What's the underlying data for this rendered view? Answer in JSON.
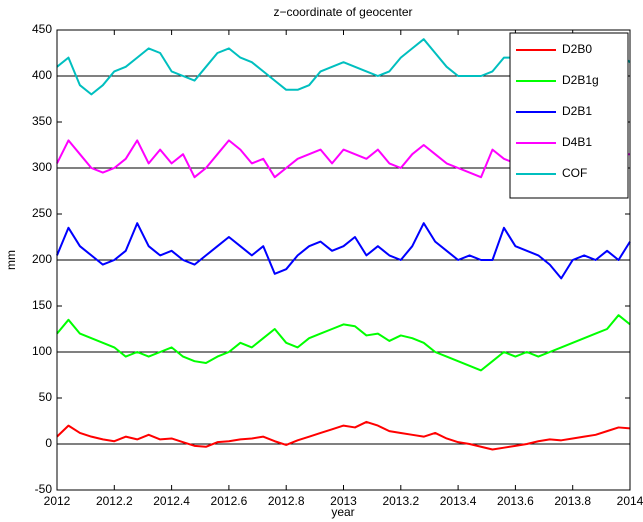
{
  "chart_data": {
    "type": "line",
    "title": "z−coordinate of geocenter",
    "xlabel": "year",
    "ylabel": "mm",
    "x": [
      2012,
      2012.04,
      2012.08,
      2012.12,
      2012.16,
      2012.2,
      2012.24,
      2012.28,
      2012.32,
      2012.36,
      2012.4,
      2012.44,
      2012.48,
      2012.52,
      2012.56,
      2012.6,
      2012.64,
      2012.68,
      2012.72,
      2012.76,
      2012.8,
      2012.84,
      2012.88,
      2012.92,
      2012.96,
      2013,
      2013.04,
      2013.08,
      2013.12,
      2013.16,
      2013.2,
      2013.24,
      2013.28,
      2013.32,
      2013.36,
      2013.4,
      2013.44,
      2013.48,
      2013.52,
      2013.56,
      2013.6,
      2013.64,
      2013.68,
      2013.72,
      2013.76,
      2013.8,
      2013.84,
      2013.88,
      2013.92,
      2013.96,
      2014
    ],
    "series": [
      {
        "name": "D2B0",
        "color": "#ff0000",
        "values": [
          8,
          20,
          12,
          8,
          5,
          3,
          8,
          5,
          10,
          5,
          6,
          2,
          -2,
          -3,
          2,
          3,
          5,
          6,
          8,
          3,
          -1,
          4,
          8,
          12,
          16,
          20,
          18,
          24,
          20,
          14,
          12,
          10,
          8,
          12,
          6,
          2,
          0,
          -3,
          -6,
          -4,
          -2,
          0,
          3,
          5,
          4,
          6,
          8,
          10,
          14,
          18,
          17
        ]
      },
      {
        "name": "D2B1g",
        "color": "#00ff00",
        "values": [
          120,
          135,
          120,
          115,
          110,
          105,
          95,
          100,
          95,
          100,
          105,
          95,
          90,
          88,
          95,
          100,
          110,
          105,
          115,
          125,
          110,
          105,
          115,
          120,
          125,
          130,
          128,
          118,
          120,
          112,
          118,
          115,
          110,
          100,
          95,
          90,
          85,
          80,
          90,
          100,
          95,
          100,
          95,
          100,
          105,
          110,
          115,
          120,
          125,
          140,
          130
        ]
      },
      {
        "name": "D2B1",
        "color": "#0000ff",
        "values": [
          205,
          235,
          215,
          205,
          195,
          200,
          210,
          240,
          215,
          205,
          210,
          200,
          195,
          205,
          215,
          225,
          215,
          205,
          215,
          185,
          190,
          205,
          215,
          220,
          210,
          215,
          225,
          205,
          215,
          205,
          200,
          215,
          240,
          220,
          210,
          200,
          205,
          200,
          200,
          235,
          215,
          210,
          205,
          195,
          180,
          200,
          205,
          200,
          210,
          200,
          220
        ]
      },
      {
        "name": "D4B1",
        "color": "#ff00ff",
        "values": [
          305,
          330,
          315,
          300,
          295,
          300,
          310,
          330,
          305,
          320,
          305,
          315,
          290,
          300,
          315,
          330,
          320,
          305,
          310,
          290,
          300,
          310,
          315,
          320,
          305,
          320,
          315,
          310,
          320,
          305,
          300,
          315,
          325,
          315,
          305,
          300,
          295,
          290,
          320,
          310,
          305,
          315,
          295,
          285,
          305,
          300,
          295,
          310,
          300,
          315,
          315
        ]
      },
      {
        "name": "COF",
        "color": "#00bfbf",
        "values": [
          410,
          420,
          390,
          380,
          390,
          405,
          410,
          420,
          430,
          425,
          405,
          400,
          395,
          410,
          425,
          430,
          420,
          415,
          405,
          395,
          385,
          385,
          390,
          405,
          410,
          415,
          410,
          405,
          400,
          405,
          420,
          430,
          440,
          425,
          410,
          400,
          400,
          400,
          405,
          420,
          420,
          415,
          410,
          415,
          425,
          410,
          415,
          420,
          415,
          425,
          415
        ]
      }
    ],
    "xlim": [
      2012,
      2014
    ],
    "xticks": [
      2012,
      2012.2,
      2012.4,
      2012.6,
      2012.8,
      2013,
      2013.2,
      2013.4,
      2013.6,
      2013.8,
      2014
    ],
    "ylim": [
      -50,
      450
    ],
    "yticks": [
      -50,
      0,
      50,
      100,
      150,
      200,
      250,
      300,
      350,
      400,
      450
    ],
    "hlines": [
      0,
      100,
      200,
      300,
      400
    ],
    "legend": "northeast"
  }
}
